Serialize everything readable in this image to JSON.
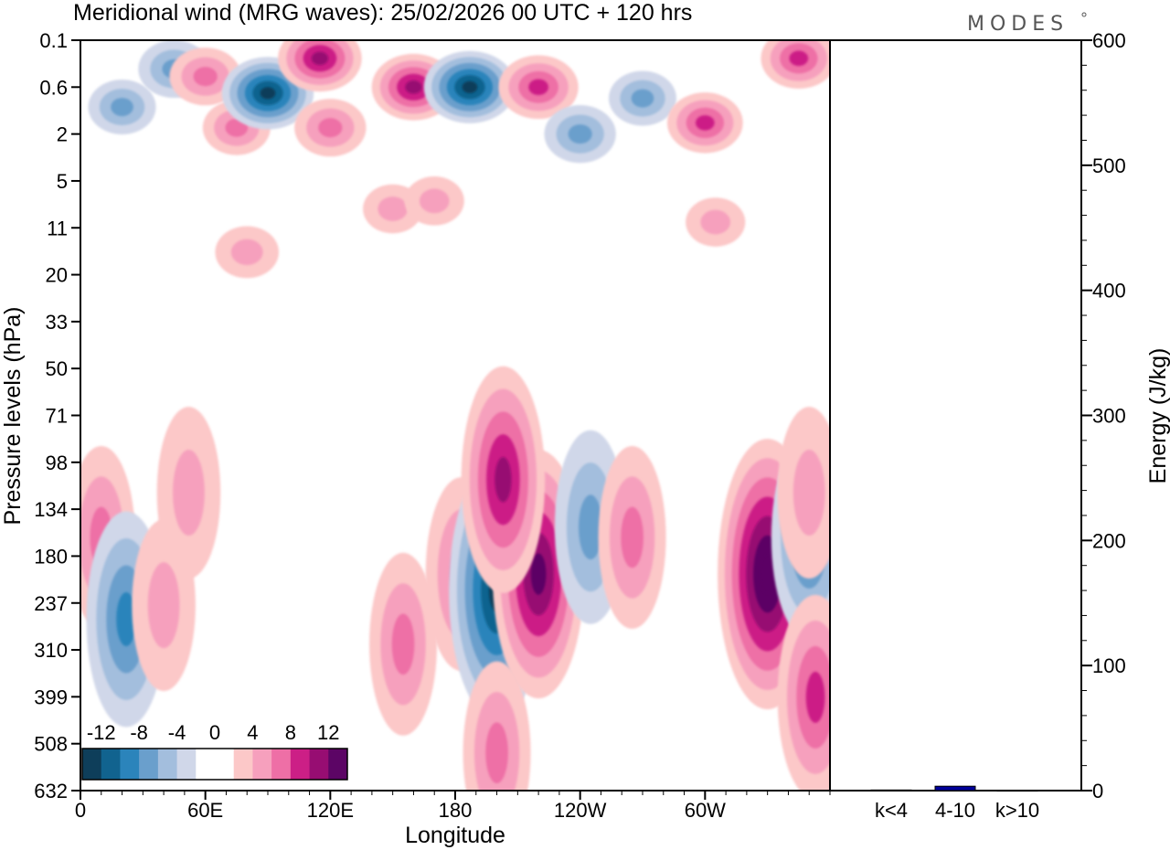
{
  "chart_data": [
    {
      "type": "heatmap",
      "title": "Meridional wind (MRG waves):  25/02/2026  00 UTC  + 120 hrs",
      "xlabel": "Longitude",
      "ylabel": "Pressure levels (hPa)",
      "x_ticks": [
        "0",
        "60E",
        "120E",
        "180",
        "120W",
        "60W"
      ],
      "y_ticks": [
        "0.1",
        "0.6",
        "2",
        "5",
        "11",
        "20",
        "33",
        "50",
        "71",
        "98",
        "134",
        "180",
        "237",
        "310",
        "399",
        "508",
        "632"
      ],
      "colorbar": {
        "labels": [
          "-12",
          "-8",
          "-4",
          "0",
          "4",
          "8",
          "12"
        ],
        "colors": [
          "#0e3e5a",
          "#11638f",
          "#2b84bb",
          "#6a9fcc",
          "#a3bedd",
          "#d0d7e9",
          "#ffffff",
          "#ffffff",
          "#fcc8c8",
          "#f6a0bd",
          "#ee6fa6",
          "#cc1f86",
          "#970d72",
          "#5c0565"
        ]
      },
      "features": [
        {
          "lon": 20,
          "lev": 1.0,
          "value": -5
        },
        {
          "lon": 45,
          "lev": 0.3,
          "value": -6
        },
        {
          "lon": 60,
          "lev": 0.4,
          "value": 6
        },
        {
          "lon": 75,
          "lev": 1.7,
          "value": 5
        },
        {
          "lon": 90,
          "lev": 0.7,
          "value": -11
        },
        {
          "lon": 115,
          "lev": 0.2,
          "value": 9
        },
        {
          "lon": 120,
          "lev": 1.7,
          "value": 6
        },
        {
          "lon": 160,
          "lev": 0.6,
          "value": 9
        },
        {
          "lon": 187,
          "lev": 0.6,
          "value": -11
        },
        {
          "lon": 220,
          "lev": 0.6,
          "value": 8
        },
        {
          "lon": 240,
          "lev": 2.0,
          "value": -6
        },
        {
          "lon": 270,
          "lev": 0.8,
          "value": -5
        },
        {
          "lon": 300,
          "lev": 1.5,
          "value": 7
        },
        {
          "lon": 345,
          "lev": 0.2,
          "value": 7
        },
        {
          "lon": 150,
          "lev": 8.0,
          "value": 3
        },
        {
          "lon": 170,
          "lev": 7.0,
          "value": 3
        },
        {
          "lon": 80,
          "lev": 15,
          "value": 4
        },
        {
          "lon": 305,
          "lev": 10,
          "value": 3
        },
        {
          "lon": 10,
          "lev": 160,
          "value": 5
        },
        {
          "lon": 22,
          "lev": 260,
          "value": -8
        },
        {
          "lon": 40,
          "lev": 240,
          "value": 4
        },
        {
          "lon": 52,
          "lev": 120,
          "value": 4
        },
        {
          "lon": 155,
          "lev": 300,
          "value": 5
        },
        {
          "lon": 183,
          "lev": 200,
          "value": 6
        },
        {
          "lon": 200,
          "lev": 220,
          "value": -12
        },
        {
          "lon": 220,
          "lev": 200,
          "value": 11
        },
        {
          "lon": 203,
          "lev": 110,
          "value": 9
        },
        {
          "lon": 245,
          "lev": 150,
          "value": -6
        },
        {
          "lon": 265,
          "lev": 160,
          "value": 5
        },
        {
          "lon": 330,
          "lev": 200,
          "value": 13
        },
        {
          "lon": 350,
          "lev": 160,
          "value": -7
        },
        {
          "lon": 353,
          "lev": 400,
          "value": 7
        },
        {
          "lon": 200,
          "lev": 530,
          "value": 5
        },
        {
          "lon": 350,
          "lev": 120,
          "value": 4
        }
      ]
    },
    {
      "type": "bar",
      "ylabel": "Energy (J/kg)",
      "categories": [
        "k<4",
        "4-10",
        "k>10"
      ],
      "values": [
        0.5,
        3.5,
        0.3
      ],
      "ylim": [
        0,
        600
      ],
      "y_ticks": [
        "0",
        "100",
        "200",
        "300",
        "400",
        "500",
        "600"
      ],
      "bar_color": "#000099"
    }
  ],
  "logo_text": "MODES"
}
